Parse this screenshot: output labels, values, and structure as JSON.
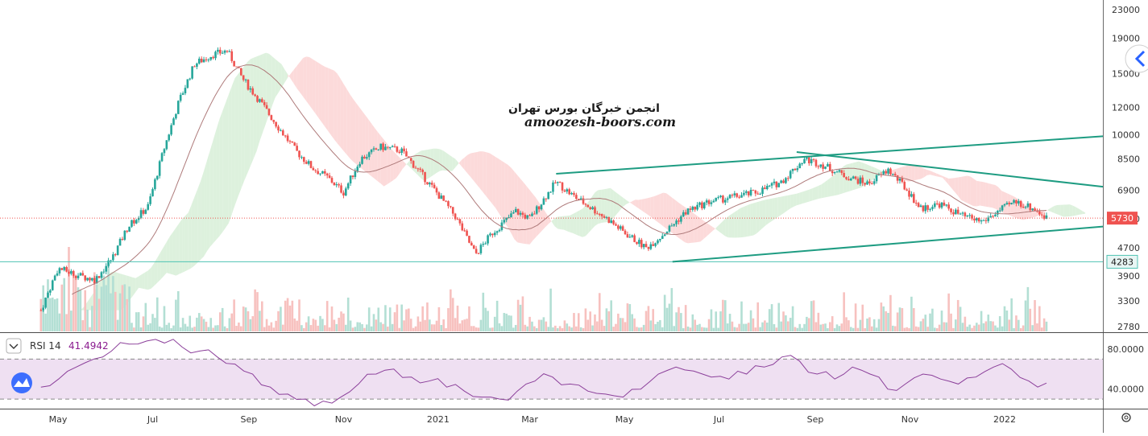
{
  "chart_data": [
    {
      "type": "candlestick",
      "title": "",
      "watermark": [
        "انجمن خبرگان بورس تهران",
        "amoozesh-boors.com"
      ],
      "y_scale": "log",
      "ylim": [
        2650,
        24000
      ],
      "y_ticks": [
        2780,
        3300,
        3900,
        4700,
        5700,
        6900,
        8500,
        10000,
        12000,
        15000,
        19000,
        23000
      ],
      "y_tick_labels": [
        "2780",
        "3300",
        "3900",
        "4700",
        "5700",
        "6900",
        "8500",
        "10000",
        "12000",
        "15000",
        "19000",
        "23000"
      ],
      "x_tick_labels": [
        "May",
        "Jul",
        "Sep",
        "Nov",
        "2021",
        "Mar",
        "May",
        "Jul",
        "Sep",
        "Nov",
        "2022"
      ],
      "x_tick_dates": [
        "2020-05-01",
        "2020-07-01",
        "2020-09-01",
        "2020-11-01",
        "2021-01-01",
        "2021-03-01",
        "2021-05-01",
        "2021-07-01",
        "2021-09-01",
        "2021-11-01",
        "2022-01-01"
      ],
      "price_path": [
        [
          "2020-04-20",
          3100
        ],
        [
          "2020-05-01",
          4100
        ],
        [
          "2020-05-15",
          3900
        ],
        [
          "2020-05-25",
          3800
        ],
        [
          "2020-06-05",
          4400
        ],
        [
          "2020-06-15",
          5400
        ],
        [
          "2020-06-28",
          6200
        ],
        [
          "2020-07-08",
          9000
        ],
        [
          "2020-07-18",
          12500
        ],
        [
          "2020-07-28",
          16000
        ],
        [
          "2020-08-08",
          17000
        ],
        [
          "2020-08-18",
          17500
        ],
        [
          "2020-08-28",
          14500
        ],
        [
          "2020-09-08",
          12500
        ],
        [
          "2020-09-20",
          10500
        ],
        [
          "2020-10-01",
          9000
        ],
        [
          "2020-10-12",
          8000
        ],
        [
          "2020-10-22",
          7500
        ],
        [
          "2020-11-01",
          6800
        ],
        [
          "2020-11-12",
          8500
        ],
        [
          "2020-11-25",
          9200
        ],
        [
          "2020-12-08",
          9000
        ],
        [
          "2020-12-18",
          8000
        ],
        [
          "2021-01-01",
          6700
        ],
        [
          "2021-01-12",
          5800
        ],
        [
          "2021-01-25",
          4500
        ],
        [
          "2021-02-05",
          5200
        ],
        [
          "2021-02-20",
          6000
        ],
        [
          "2021-03-01",
          5700
        ],
        [
          "2021-03-10",
          6500
        ],
        [
          "2021-03-18",
          7300
        ],
        [
          "2021-03-28",
          6700
        ],
        [
          "2021-04-08",
          6200
        ],
        [
          "2021-04-20",
          5700
        ],
        [
          "2021-05-01",
          5200
        ],
        [
          "2021-05-15",
          4700
        ],
        [
          "2021-05-25",
          5100
        ],
        [
          "2021-06-10",
          6000
        ],
        [
          "2021-06-25",
          6400
        ],
        [
          "2021-07-10",
          6600
        ],
        [
          "2021-07-25",
          6800
        ],
        [
          "2021-08-10",
          7300
        ],
        [
          "2021-08-25",
          8500
        ],
        [
          "2021-09-05",
          8200
        ],
        [
          "2021-09-20",
          7600
        ],
        [
          "2021-10-05",
          7200
        ],
        [
          "2021-10-18",
          7900
        ],
        [
          "2021-10-28",
          7100
        ],
        [
          "2021-11-08",
          6100
        ],
        [
          "2021-11-20",
          6300
        ],
        [
          "2021-12-05",
          5800
        ],
        [
          "2021-12-18",
          5600
        ],
        [
          "2021-12-28",
          6000
        ],
        [
          "2022-01-08",
          6400
        ],
        [
          "2022-01-20",
          6100
        ],
        [
          "2022-01-28",
          5730
        ]
      ],
      "last_price": "5730",
      "horizontal_level": "4283",
      "trendlines": [
        {
          "from": [
            "2021-03-18",
            7700
          ],
          "to": [
            "2022-05-15",
            10400
          ]
        },
        {
          "from": [
            "2021-08-20",
            8900
          ],
          "to": [
            "2022-05-15",
            6500
          ]
        },
        {
          "from": [
            "2021-06-01",
            4283
          ],
          "to": [
            "2022-05-15",
            5750
          ]
        }
      ],
      "colors": {
        "up": "#26a69a",
        "down": "#ef5350",
        "up_volume": "#b3dfd4",
        "down_volume": "#f7c1bf",
        "trendline": "#1e9c82",
        "baseline": "#ae7a7a",
        "cloud_bull": "#d7eed7",
        "cloud_bear": "#fbd3d3",
        "last_price_tag": "#ef5350",
        "level_line": "#4fc3b3"
      }
    },
    {
      "type": "line",
      "title": "RSI 14",
      "current_value": "41.4942",
      "ylim": [
        10,
        100
      ],
      "y_ticks": [
        40,
        80
      ],
      "y_tick_labels": [
        "40.0000",
        "80.0000"
      ],
      "band": [
        30,
        70
      ],
      "series": [
        {
          "name": "RSI 14",
          "values": [
            42,
            50,
            62,
            70,
            78,
            85,
            88,
            86,
            82,
            78,
            72,
            65,
            55,
            42,
            35,
            30,
            28,
            32,
            45,
            55,
            60,
            52,
            48,
            42,
            38,
            32,
            30,
            38,
            48,
            52,
            45,
            38,
            35,
            32,
            40,
            55,
            62,
            58,
            52,
            50,
            55,
            62,
            72,
            68,
            55,
            50,
            62,
            55,
            40,
            45,
            55,
            50,
            45,
            52,
            62,
            60,
            48,
            46
          ]
        }
      ],
      "colors": {
        "line": "#8b3f9a",
        "band_fill": "#efe0f2"
      }
    }
  ],
  "ui": {
    "settings_icon": "gear-icon",
    "collapse_icon": "chevron-left-icon"
  }
}
